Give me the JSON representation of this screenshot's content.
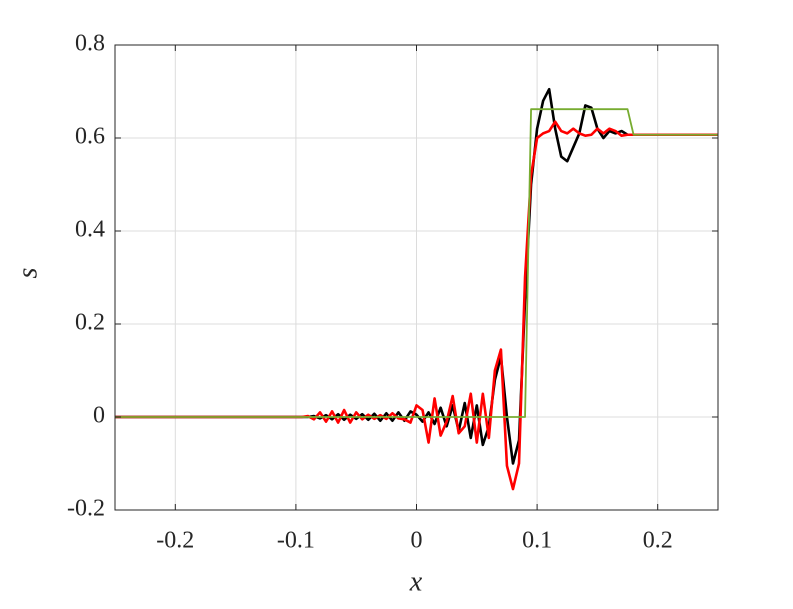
{
  "chart_data": {
    "type": "line",
    "xlabel": "x",
    "ylabel": "s",
    "x": [
      -0.25,
      -0.1,
      -0.095,
      -0.09,
      -0.085,
      -0.08,
      -0.075,
      -0.07,
      -0.065,
      -0.06,
      -0.055,
      -0.05,
      -0.045,
      -0.04,
      -0.035,
      -0.03,
      -0.025,
      -0.02,
      -0.015,
      -0.01,
      -0.005,
      0,
      0.005,
      0.01,
      0.015,
      0.02,
      0.025,
      0.03,
      0.035,
      0.04,
      0.045,
      0.05,
      0.055,
      0.06,
      0.065,
      0.07,
      0.075,
      0.08,
      0.085,
      0.09,
      0.095,
      0.1,
      0.105,
      0.11,
      0.115,
      0.12,
      0.125,
      0.13,
      0.135,
      0.14,
      0.145,
      0.15,
      0.155,
      0.16,
      0.165,
      0.17,
      0.175,
      0.18,
      0.185,
      0.19,
      0.195,
      0.2,
      0.25
    ],
    "series": [
      {
        "color": "#000000",
        "values": [
          0,
          0,
          0,
          0,
          0.002,
          -0.003,
          0.004,
          -0.005,
          0.006,
          -0.006,
          0.005,
          -0.004,
          0.006,
          -0.006,
          0.007,
          -0.008,
          0.008,
          -0.008,
          0.01,
          -0.008,
          0.012,
          0.005,
          -0.01,
          0.01,
          -0.015,
          0.02,
          -0.02,
          0.025,
          -0.03,
          0.03,
          -0.045,
          0.025,
          -0.06,
          -0.02,
          0.08,
          0.13,
          0.0,
          -0.1,
          -0.05,
          0.25,
          0.5,
          0.62,
          0.68,
          0.705,
          0.62,
          0.56,
          0.55,
          0.58,
          0.61,
          0.67,
          0.665,
          0.62,
          0.6,
          0.615,
          0.61,
          0.615,
          0.607,
          0.607,
          0.607,
          0.607,
          0.607,
          0.607,
          0.607
        ]
      },
      {
        "color": "#ff0000",
        "values": [
          0,
          0,
          0,
          0.002,
          -0.005,
          0.01,
          -0.01,
          0.012,
          -0.012,
          0.015,
          -0.012,
          0.01,
          -0.005,
          0.005,
          -0.004,
          0.004,
          -0.004,
          0.008,
          -0.003,
          -0.005,
          -0.012,
          0.025,
          0.015,
          -0.055,
          0.04,
          -0.04,
          -0.01,
          0.045,
          -0.035,
          -0.02,
          0.05,
          -0.055,
          0.05,
          -0.045,
          0.1,
          0.145,
          -0.105,
          -0.155,
          -0.1,
          0.3,
          0.52,
          0.6,
          0.61,
          0.615,
          0.635,
          0.615,
          0.61,
          0.62,
          0.61,
          0.605,
          0.607,
          0.62,
          0.61,
          0.62,
          0.615,
          0.605,
          0.607,
          0.607,
          0.607,
          0.607,
          0.607,
          0.607,
          0.607
        ]
      },
      {
        "color": "#77ac30",
        "values": [
          0,
          0,
          0,
          0,
          0,
          0,
          0,
          0,
          0,
          0,
          0,
          0,
          0,
          0,
          0,
          0,
          0,
          0,
          0,
          0,
          0,
          0,
          0,
          0,
          0,
          0,
          0,
          0,
          0,
          0,
          0,
          0,
          0,
          0,
          0,
          0,
          0,
          0,
          0,
          0,
          0.662,
          0.662,
          0.662,
          0.662,
          0.662,
          0.662,
          0.662,
          0.662,
          0.662,
          0.662,
          0.662,
          0.662,
          0.662,
          0.662,
          0.662,
          0.662,
          0.662,
          0.607,
          0.607,
          0.607,
          0.607,
          0.607,
          0.607
        ]
      }
    ],
    "xlim": [
      -0.25,
      0.25
    ],
    "ylim": [
      -0.2,
      0.8
    ],
    "xticks": [
      -0.2,
      -0.1,
      0,
      0.1,
      0.2
    ],
    "yticks": [
      -0.2,
      0,
      0.2,
      0.4,
      0.6,
      0.8
    ],
    "grid": true
  }
}
